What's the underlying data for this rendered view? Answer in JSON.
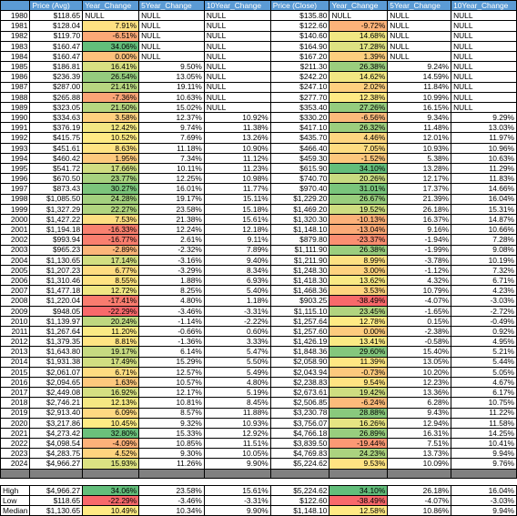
{
  "headers": [
    "",
    "Price (Avg)",
    "Year_Change",
    "5Year_Change",
    "10Year_Change",
    "Price (Close)",
    "Year_Change",
    "5Year_Change",
    "10Year_Change"
  ],
  "rows": [
    {
      "year": "1980",
      "avg": "$118.65",
      "yc": "NULL",
      "yc_pct": null,
      "y5": "NULL",
      "y10": "NULL",
      "close": "$135.80",
      "cyc": "NULL",
      "cyc_pct": null,
      "c5": "NULL",
      "c10": "NULL"
    },
    {
      "year": "1981",
      "avg": "$128.04",
      "yc": "7.91%",
      "yc_pct": 7.91,
      "y5": "NULL",
      "y10": "NULL",
      "close": "$122.60",
      "cyc": "-9.72%",
      "cyc_pct": -9.72,
      "c5": "NULL",
      "c10": "NULL"
    },
    {
      "year": "1982",
      "avg": "$119.70",
      "yc": "-6.51%",
      "yc_pct": -6.51,
      "y5": "NULL",
      "y10": "NULL",
      "close": "$140.60",
      "cyc": "14.68%",
      "cyc_pct": 14.68,
      "c5": "NULL",
      "c10": "NULL"
    },
    {
      "year": "1983",
      "avg": "$160.47",
      "yc": "34.06%",
      "yc_pct": 34.06,
      "y5": "NULL",
      "y10": "NULL",
      "close": "$164.90",
      "cyc": "17.28%",
      "cyc_pct": 17.28,
      "c5": "NULL",
      "c10": "NULL"
    },
    {
      "year": "1984",
      "avg": "$160.47",
      "yc": "0.00%",
      "yc_pct": 0.0,
      "y5": "NULL",
      "y10": "NULL",
      "close": "$167.20",
      "cyc": "1.39%",
      "cyc_pct": 1.39,
      "c5": "NULL",
      "c10": "NULL"
    },
    {
      "year": "1985",
      "avg": "$186.81",
      "yc": "16.41%",
      "yc_pct": 16.41,
      "y5": "9.50%",
      "y10": "NULL",
      "close": "$211.30",
      "cyc": "26.38%",
      "cyc_pct": 26.38,
      "c5": "9.24%",
      "c10": "NULL"
    },
    {
      "year": "1986",
      "avg": "$236.39",
      "yc": "26.54%",
      "yc_pct": 26.54,
      "y5": "13.05%",
      "y10": "NULL",
      "close": "$242.20",
      "cyc": "14.62%",
      "cyc_pct": 14.62,
      "c5": "14.59%",
      "c10": "NULL"
    },
    {
      "year": "1987",
      "avg": "$287.00",
      "yc": "21.41%",
      "yc_pct": 21.41,
      "y5": "19.11%",
      "y10": "NULL",
      "close": "$247.10",
      "cyc": "2.02%",
      "cyc_pct": 2.02,
      "c5": "11.84%",
      "c10": "NULL"
    },
    {
      "year": "1988",
      "avg": "$265.88",
      "yc": "-7.36%",
      "yc_pct": -7.36,
      "y5": "10.63%",
      "y10": "NULL",
      "close": "$277.70",
      "cyc": "12.38%",
      "cyc_pct": 12.38,
      "c5": "10.99%",
      "c10": "NULL"
    },
    {
      "year": "1989",
      "avg": "$323.05",
      "yc": "21.50%",
      "yc_pct": 21.5,
      "y5": "15.02%",
      "y10": "NULL",
      "close": "$353.40",
      "cyc": "27.26%",
      "cyc_pct": 27.26,
      "c5": "16.15%",
      "c10": "NULL"
    },
    {
      "year": "1990",
      "avg": "$334.63",
      "yc": "3.58%",
      "yc_pct": 3.58,
      "y5": "12.37%",
      "y10": "10.92%",
      "close": "$330.20",
      "cyc": "-6.56%",
      "cyc_pct": -6.56,
      "c5": "9.34%",
      "c10": "9.29%"
    },
    {
      "year": "1991",
      "avg": "$376.19",
      "yc": "12.42%",
      "yc_pct": 12.42,
      "y5": "9.74%",
      "y10": "11.38%",
      "close": "$417.10",
      "cyc": "26.32%",
      "cyc_pct": 26.32,
      "c5": "11.48%",
      "c10": "13.03%"
    },
    {
      "year": "1992",
      "avg": "$415.75",
      "yc": "10.52%",
      "yc_pct": 10.52,
      "y5": "7.69%",
      "y10": "13.26%",
      "close": "$435.70",
      "cyc": "4.46%",
      "cyc_pct": 4.46,
      "c5": "12.01%",
      "c10": "11.97%"
    },
    {
      "year": "1993",
      "avg": "$451.61",
      "yc": "8.63%",
      "yc_pct": 8.63,
      "y5": "11.18%",
      "y10": "10.90%",
      "close": "$466.40",
      "cyc": "7.05%",
      "cyc_pct": 7.05,
      "c5": "10.93%",
      "c10": "10.96%"
    },
    {
      "year": "1994",
      "avg": "$460.42",
      "yc": "1.95%",
      "yc_pct": 1.95,
      "y5": "7.34%",
      "y10": "11.12%",
      "close": "$459.30",
      "cyc": "-1.52%",
      "cyc_pct": -1.52,
      "c5": "5.38%",
      "c10": "10.63%"
    },
    {
      "year": "1995",
      "avg": "$541.72",
      "yc": "17.66%",
      "yc_pct": 17.66,
      "y5": "10.11%",
      "y10": "11.23%",
      "close": "$615.90",
      "cyc": "34.10%",
      "cyc_pct": 34.1,
      "c5": "13.28%",
      "c10": "11.29%"
    },
    {
      "year": "1996",
      "avg": "$670.50",
      "yc": "23.77%",
      "yc_pct": 23.77,
      "y5": "12.25%",
      "y10": "10.98%",
      "close": "$740.70",
      "cyc": "20.26%",
      "cyc_pct": 20.26,
      "c5": "12.17%",
      "c10": "11.83%"
    },
    {
      "year": "1997",
      "avg": "$873.43",
      "yc": "30.27%",
      "yc_pct": 30.27,
      "y5": "16.01%",
      "y10": "11.77%",
      "close": "$970.40",
      "cyc": "31.01%",
      "cyc_pct": 31.01,
      "c5": "17.37%",
      "c10": "14.66%"
    },
    {
      "year": "1998",
      "avg": "$1,085.50",
      "yc": "24.28%",
      "yc_pct": 24.28,
      "y5": "19.17%",
      "y10": "15.11%",
      "close": "$1,229.20",
      "cyc": "26.67%",
      "cyc_pct": 26.67,
      "c5": "21.39%",
      "c10": "16.04%"
    },
    {
      "year": "1999",
      "avg": "$1,327.29",
      "yc": "22.27%",
      "yc_pct": 22.27,
      "y5": "23.58%",
      "y10": "15.18%",
      "close": "$1,469.20",
      "cyc": "19.52%",
      "cyc_pct": 19.52,
      "c5": "26.18%",
      "c10": "15.31%"
    },
    {
      "year": "2000",
      "avg": "$1,427.22",
      "yc": "7.53%",
      "yc_pct": 7.53,
      "y5": "21.38%",
      "y10": "15.61%",
      "close": "$1,320.30",
      "cyc": "-10.13%",
      "cyc_pct": -10.13,
      "c5": "16.37%",
      "c10": "14.87%"
    },
    {
      "year": "2001",
      "avg": "$1,194.18",
      "yc": "-16.33%",
      "yc_pct": -16.33,
      "y5": "12.24%",
      "y10": "12.18%",
      "close": "$1,148.10",
      "cyc": "-13.04%",
      "cyc_pct": -13.04,
      "c5": "9.16%",
      "c10": "10.66%"
    },
    {
      "year": "2002",
      "avg": "$993.94",
      "yc": "-16.77%",
      "yc_pct": -16.77,
      "y5": "2.61%",
      "y10": "9.11%",
      "close": "$879.80",
      "cyc": "-23.37%",
      "cyc_pct": -23.37,
      "c5": "-1.94%",
      "c10": "7.28%"
    },
    {
      "year": "2003",
      "avg": "$965.23",
      "yc": "-2.89%",
      "yc_pct": -2.89,
      "y5": "-2.32%",
      "y10": "7.89%",
      "close": "$1,111.90",
      "cyc": "26.38%",
      "cyc_pct": 26.38,
      "c5": "-1.99%",
      "c10": "9.08%"
    },
    {
      "year": "2004",
      "avg": "$1,130.65",
      "yc": "17.14%",
      "yc_pct": 17.14,
      "y5": "-3.16%",
      "y10": "9.40%",
      "close": "$1,211.90",
      "cyc": "8.99%",
      "cyc_pct": 8.99,
      "c5": "-3.78%",
      "c10": "10.19%"
    },
    {
      "year": "2005",
      "avg": "$1,207.23",
      "yc": "6.77%",
      "yc_pct": 6.77,
      "y5": "-3.29%",
      "y10": "8.34%",
      "close": "$1,248.30",
      "cyc": "3.00%",
      "cyc_pct": 3.0,
      "c5": "-1.12%",
      "c10": "7.32%"
    },
    {
      "year": "2006",
      "avg": "$1,310.46",
      "yc": "8.55%",
      "yc_pct": 8.55,
      "y5": "1.88%",
      "y10": "6.93%",
      "close": "$1,418.30",
      "cyc": "13.62%",
      "cyc_pct": 13.62,
      "c5": "4.32%",
      "c10": "6.71%"
    },
    {
      "year": "2007",
      "avg": "$1,477.18",
      "yc": "12.72%",
      "yc_pct": 12.72,
      "y5": "8.25%",
      "y10": "5.40%",
      "close": "$1,468.36",
      "cyc": "3.53%",
      "cyc_pct": 3.53,
      "c5": "10.79%",
      "c10": "4.23%"
    },
    {
      "year": "2008",
      "avg": "$1,220.04",
      "yc": "-17.41%",
      "yc_pct": -17.41,
      "y5": "4.80%",
      "y10": "1.18%",
      "close": "$903.25",
      "cyc": "-38.49%",
      "cyc_pct": -38.49,
      "c5": "-4.07%",
      "c10": "-3.03%"
    },
    {
      "year": "2009",
      "avg": "$948.05",
      "yc": "-22.29%",
      "yc_pct": -22.29,
      "y5": "-3.46%",
      "y10": "-3.31%",
      "close": "$1,115.10",
      "cyc": "23.45%",
      "cyc_pct": 23.45,
      "c5": "-1.65%",
      "c10": "-2.72%"
    },
    {
      "year": "2010",
      "avg": "$1,139.97",
      "yc": "20.24%",
      "yc_pct": 20.24,
      "y5": "-1.14%",
      "y10": "-2.22%",
      "close": "$1,257.64",
      "cyc": "12.78%",
      "cyc_pct": 12.78,
      "c5": "0.15%",
      "c10": "-0.49%"
    },
    {
      "year": "2011",
      "avg": "$1,267.64",
      "yc": "11.20%",
      "yc_pct": 11.2,
      "y5": "-0.66%",
      "y10": "0.60%",
      "close": "$1,257.60",
      "cyc": "0.00%",
      "cyc_pct": 0.0,
      "c5": "-2.38%",
      "c10": "0.92%"
    },
    {
      "year": "2012",
      "avg": "$1,379.35",
      "yc": "8.81%",
      "yc_pct": 8.81,
      "y5": "-1.36%",
      "y10": "3.33%",
      "close": "$1,426.19",
      "cyc": "13.41%",
      "cyc_pct": 13.41,
      "c5": "-0.58%",
      "c10": "4.95%"
    },
    {
      "year": "2013",
      "avg": "$1,643.80",
      "yc": "19.17%",
      "yc_pct": 19.17,
      "y5": "6.14%",
      "y10": "5.47%",
      "close": "$1,848.36",
      "cyc": "29.60%",
      "cyc_pct": 29.6,
      "c5": "15.40%",
      "c10": "5.21%"
    },
    {
      "year": "2014",
      "avg": "$1,931.38",
      "yc": "17.49%",
      "yc_pct": 17.49,
      "y5": "15.29%",
      "y10": "5.50%",
      "close": "$2,058.90",
      "cyc": "11.39%",
      "cyc_pct": 11.39,
      "c5": "13.05%",
      "c10": "5.44%"
    },
    {
      "year": "2015",
      "avg": "$2,061.07",
      "yc": "6.71%",
      "yc_pct": 6.71,
      "y5": "12.57%",
      "y10": "5.49%",
      "close": "$2,043.94",
      "cyc": "-0.73%",
      "cyc_pct": -0.73,
      "c5": "10.20%",
      "c10": "5.05%"
    },
    {
      "year": "2016",
      "avg": "$2,094.65",
      "yc": "1.63%",
      "yc_pct": 1.63,
      "y5": "10.57%",
      "y10": "4.80%",
      "close": "$2,238.83",
      "cyc": "9.54%",
      "cyc_pct": 9.54,
      "c5": "12.23%",
      "c10": "4.67%"
    },
    {
      "year": "2017",
      "avg": "$2,449.08",
      "yc": "16.92%",
      "yc_pct": 16.92,
      "y5": "12.17%",
      "y10": "5.19%",
      "close": "$2,673.61",
      "cyc": "19.42%",
      "cyc_pct": 19.42,
      "c5": "13.36%",
      "c10": "6.17%"
    },
    {
      "year": "2018",
      "avg": "$2,746.21",
      "yc": "12.13%",
      "yc_pct": 12.13,
      "y5": "10.81%",
      "y10": "8.45%",
      "close": "$2,506.85",
      "cyc": "-6.24%",
      "cyc_pct": -6.24,
      "c5": "6.28%",
      "c10": "10.75%"
    },
    {
      "year": "2019",
      "avg": "$2,913.40",
      "yc": "6.09%",
      "yc_pct": 6.09,
      "y5": "8.57%",
      "y10": "11.88%",
      "close": "$3,230.78",
      "cyc": "28.88%",
      "cyc_pct": 28.88,
      "c5": "9.43%",
      "c10": "11.22%"
    },
    {
      "year": "2020",
      "avg": "$3,217.86",
      "yc": "10.45%",
      "yc_pct": 10.45,
      "y5": "9.32%",
      "y10": "10.93%",
      "close": "$3,756.07",
      "cyc": "16.26%",
      "cyc_pct": 16.26,
      "c5": "12.94%",
      "c10": "11.58%"
    },
    {
      "year": "2021",
      "avg": "$4,273.42",
      "yc": "32.80%",
      "yc_pct": 32.8,
      "y5": "15.33%",
      "y10": "12.92%",
      "close": "$4,766.18",
      "cyc": "26.89%",
      "cyc_pct": 26.89,
      "c5": "16.31%",
      "c10": "14.25%"
    },
    {
      "year": "2022",
      "avg": "$4,098.54",
      "yc": "-4.09%",
      "yc_pct": -4.09,
      "y5": "10.85%",
      "y10": "11.51%",
      "close": "$3,839.50",
      "cyc": "-19.44%",
      "cyc_pct": -19.44,
      "c5": "7.51%",
      "c10": "10.41%"
    },
    {
      "year": "2023",
      "avg": "$4,283.75",
      "yc": "4.52%",
      "yc_pct": 4.52,
      "y5": "9.30%",
      "y10": "10.05%",
      "close": "$4,769.83",
      "cyc": "24.23%",
      "cyc_pct": 24.23,
      "c5": "13.73%",
      "c10": "9.94%"
    },
    {
      "year": "2024",
      "avg": "$4,966.27",
      "yc": "15.93%",
      "yc_pct": 15.93,
      "y5": "11.26%",
      "y10": "9.90%",
      "close": "$5,224.62",
      "cyc": "9.53%",
      "cyc_pct": 9.53,
      "c5": "10.09%",
      "c10": "9.76%"
    }
  ],
  "summary": [
    {
      "label": "High",
      "avg": "$4,966.27",
      "yc": "34.06%",
      "yc_pct": 34.06,
      "y5": "23.58%",
      "y10": "15.61%",
      "close": "$5,224.62",
      "cyc": "34.10%",
      "cyc_pct": 34.1,
      "c5": "26.18%",
      "c10": "16.04%"
    },
    {
      "label": "Low",
      "avg": "$118.65",
      "yc": "-22.29%",
      "yc_pct": -22.29,
      "y5": "-3.46%",
      "y10": "-3.31%",
      "close": "$122.60",
      "cyc": "-38.49%",
      "cyc_pct": -38.49,
      "c5": "-4.07%",
      "c10": "-3.03%"
    },
    {
      "label": "Median",
      "avg": "$1,130.65",
      "yc": "10.49%",
      "yc_pct": 10.49,
      "y5": "10.34%",
      "y10": "9.90%",
      "close": "$1,148.10",
      "cyc": "12.58%",
      "cyc_pct": 12.58,
      "c5": "10.86%",
      "c10": "9.94%"
    }
  ],
  "colors": {
    "header_bg": "#5b9bd5",
    "scale_low": "#f8696b",
    "scale_mid": "#ffeb84",
    "scale_high": "#63be7b",
    "separator": "#808080"
  }
}
